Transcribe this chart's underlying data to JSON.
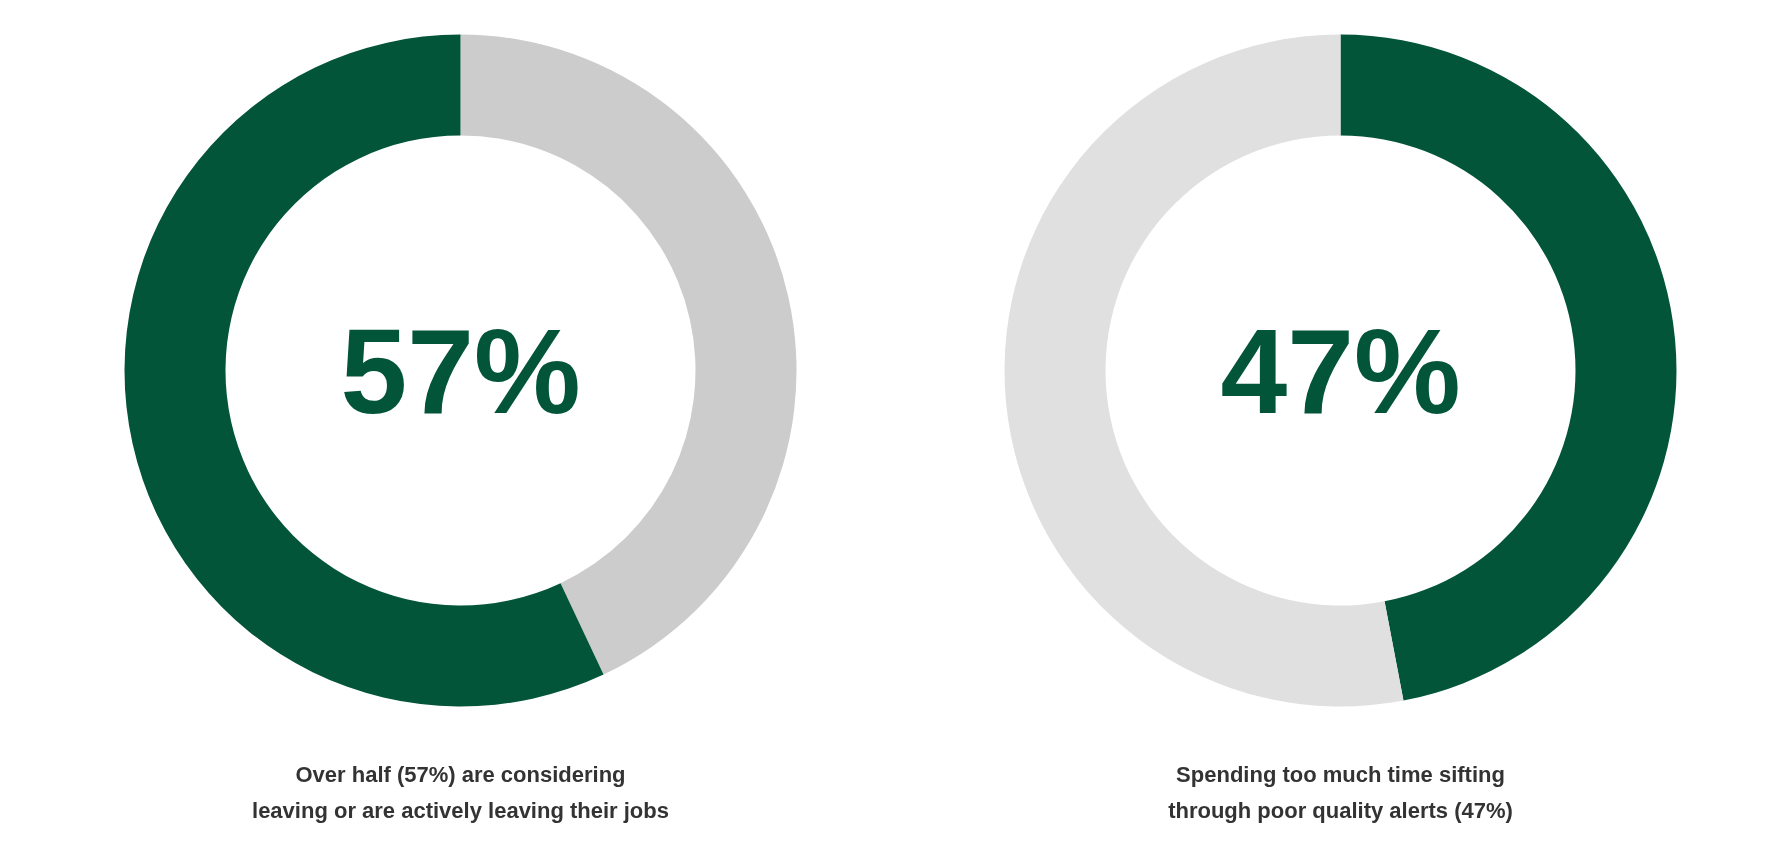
{
  "chart_data": [
    {
      "type": "donut",
      "categories": [
        null,
        null
      ],
      "values": [
        43,
        57
      ],
      "colors": [
        "#cccccc",
        "#03553a"
      ],
      "annotations": [
        "57%"
      ],
      "title": "Over half (57%) are considering\nleaving or are actively leaving their jobs"
    },
    {
      "type": "donut",
      "categories": [
        null,
        null
      ],
      "values": [
        47,
        53
      ],
      "colors": [
        "#03553a",
        "#e0e0e0"
      ],
      "annotations": [
        "47%"
      ],
      "title": "Spending too much time sifting\nthrough poor quality alerts (47%)"
    }
  ]
}
